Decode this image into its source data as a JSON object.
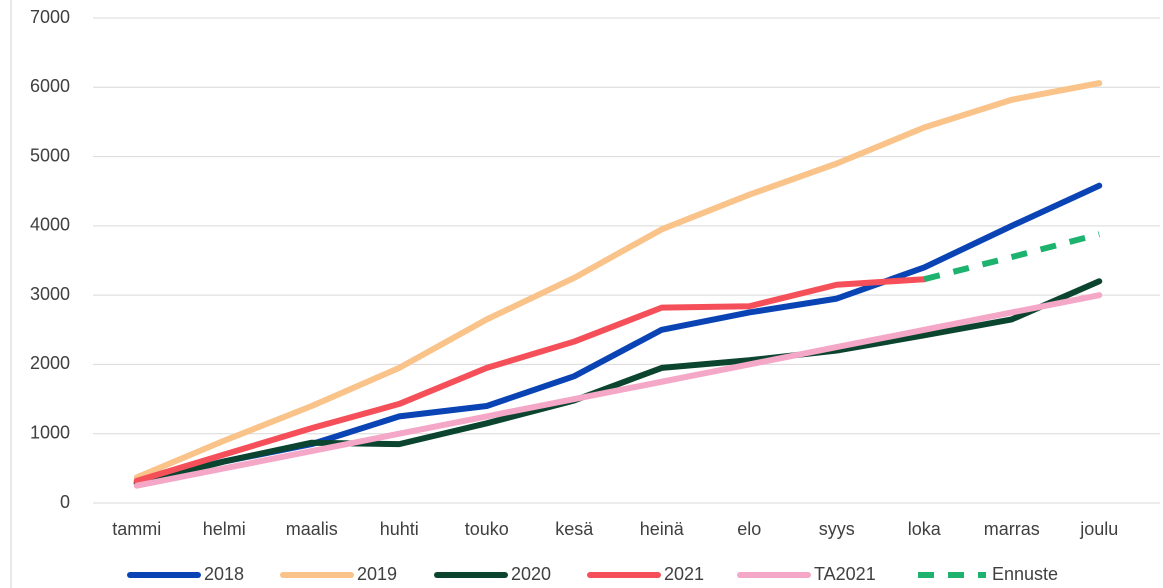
{
  "chart_data": {
    "type": "line",
    "categories": [
      "tammi",
      "helmi",
      "maalis",
      "huhti",
      "touko",
      "kesä",
      "heinä",
      "elo",
      "syys",
      "loka",
      "marras",
      "joulu"
    ],
    "series": [
      {
        "name": "2018",
        "color": "#0a44b4",
        "values": [
          300,
          600,
          850,
          1250,
          1400,
          1830,
          2500,
          2750,
          2950,
          3400,
          4000,
          4580
        ]
      },
      {
        "name": "2019",
        "color": "#f9c38a",
        "values": [
          370,
          900,
          1400,
          1950,
          2650,
          3250,
          3950,
          4450,
          4900,
          5420,
          5820,
          6060
        ]
      },
      {
        "name": "2020",
        "color": "#0b4530",
        "values": [
          280,
          600,
          870,
          850,
          1150,
          1480,
          1950,
          2060,
          2200,
          2420,
          2650,
          3200
        ]
      },
      {
        "name": "2021",
        "color": "#f5505a",
        "values": [
          320,
          700,
          1080,
          1430,
          1950,
          2330,
          2820,
          2840,
          3150,
          3230,
          null,
          null
        ]
      },
      {
        "name": "TA2021",
        "color": "#f4a7c6",
        "values": [
          250,
          500,
          750,
          1000,
          1250,
          1500,
          1750,
          2000,
          2250,
          2500,
          2750,
          3000
        ]
      },
      {
        "name": "Ennuste",
        "color": "#1db36e",
        "dashed": true,
        "values": [
          null,
          null,
          null,
          null,
          null,
          null,
          null,
          null,
          null,
          3230,
          3550,
          3880
        ]
      }
    ],
    "ylim": [
      0,
      7000
    ],
    "yticks": [
      0,
      1000,
      2000,
      3000,
      4000,
      5000,
      6000,
      7000
    ],
    "grid": true,
    "legend": "bottom"
  }
}
